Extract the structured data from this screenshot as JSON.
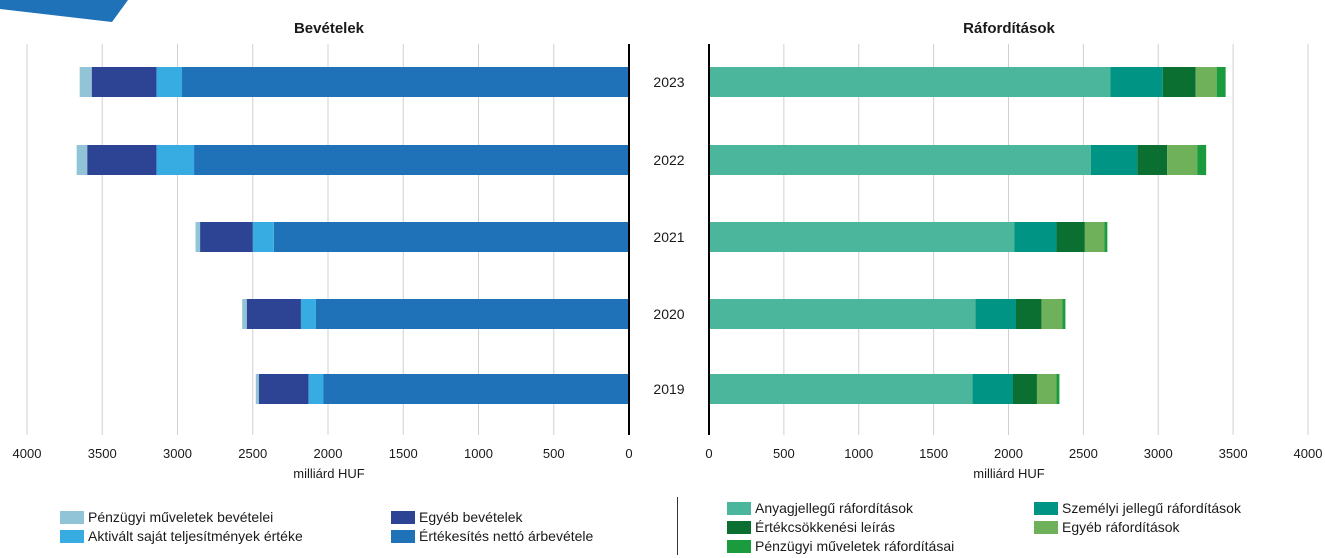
{
  "colors": {
    "background": "#ffffff",
    "corner_accent": "#1f71b8",
    "grid": "#d0d0d0",
    "axis": "#000000"
  },
  "chart_data": [
    {
      "type": "bar",
      "orientation": "horizontal",
      "stacked": true,
      "x_reversed": true,
      "title": "Bevételek",
      "xlabel": "milliárd HUF",
      "ylabel": "",
      "xlim": [
        0,
        4000
      ],
      "xticks": [
        4000,
        3500,
        3000,
        2500,
        2000,
        1500,
        1000,
        500,
        0
      ],
      "grid": true,
      "legend_position": "bottom",
      "categories": [
        "2023",
        "2022",
        "2021",
        "2020",
        "2019"
      ],
      "series": [
        {
          "name": "Értékesítés nettó árbevétele",
          "color": "#1f71b8",
          "values": [
            2970,
            2890,
            2360,
            2080,
            2030
          ]
        },
        {
          "name": "Aktivált saját teljesítmények értéke",
          "color": "#36ace2",
          "values": [
            170,
            250,
            140,
            100,
            100
          ]
        },
        {
          "name": "Egyéb bevételek",
          "color": "#2d4394",
          "values": [
            430,
            460,
            350,
            360,
            330
          ]
        },
        {
          "name": "Pénzügyi műveletek bevételei",
          "color": "#91c4d6",
          "values": [
            80,
            70,
            30,
            30,
            20
          ]
        }
      ]
    },
    {
      "type": "bar",
      "orientation": "horizontal",
      "stacked": true,
      "x_reversed": false,
      "title": "Ráfordítások",
      "xlabel": "milliárd HUF",
      "ylabel": "",
      "xlim": [
        0,
        4000
      ],
      "xticks": [
        0,
        500,
        1000,
        1500,
        2000,
        2500,
        3000,
        3500,
        4000
      ],
      "grid": true,
      "legend_position": "bottom",
      "categories": [
        "2023",
        "2022",
        "2021",
        "2020",
        "2019"
      ],
      "series": [
        {
          "name": "Anyagjellegű ráfordítások",
          "color": "#4bb69c",
          "values": [
            2680,
            2550,
            2040,
            1780,
            1760
          ]
        },
        {
          "name": "Személyi jellegű ráfordítások",
          "color": "#009484",
          "values": [
            350,
            310,
            280,
            270,
            270
          ]
        },
        {
          "name": "Értékcsökkenési leírás",
          "color": "#0b6f31",
          "values": [
            220,
            200,
            190,
            170,
            160
          ]
        },
        {
          "name": "Egyéb ráfordítások",
          "color": "#6fb05a",
          "values": [
            140,
            200,
            130,
            140,
            130
          ]
        },
        {
          "name": "Pénzügyi műveletek ráfordításai",
          "color": "#1a9c3e",
          "values": [
            60,
            60,
            20,
            20,
            20
          ]
        }
      ]
    }
  ],
  "legend": {
    "left": [
      {
        "label": "Pénzügyi műveletek bevételei",
        "color": "#91c4d6"
      },
      {
        "label": "Egyéb bevételek",
        "color": "#2d4394"
      },
      {
        "label": "Aktivált saját teljesítmények értéke",
        "color": "#36ace2"
      },
      {
        "label": "Értékesítés nettó árbevétele",
        "color": "#1f71b8"
      }
    ],
    "right": [
      {
        "label": "Anyagjellegű ráfordítások",
        "color": "#4bb69c"
      },
      {
        "label": "Személyi jellegű ráfordítások",
        "color": "#009484"
      },
      {
        "label": "Értékcsökkenési leírás",
        "color": "#0b6f31"
      },
      {
        "label": "Egyéb ráfordítások",
        "color": "#6fb05a"
      },
      {
        "label": "Pénzügyi műveletek ráfordításai",
        "color": "#1a9c3e"
      }
    ]
  }
}
